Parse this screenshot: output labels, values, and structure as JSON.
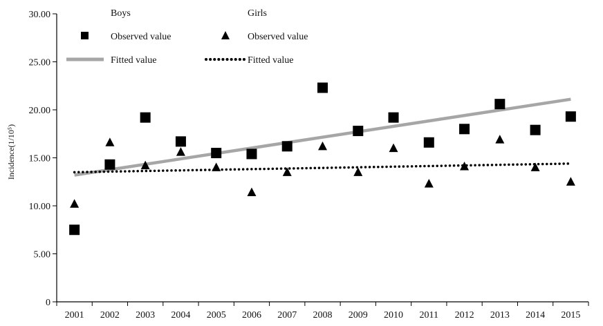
{
  "chart_data": {
    "type": "scatter",
    "ylabel": "Incidence(1/10⁵)",
    "xlabel": "",
    "ylim": [
      0,
      30
    ],
    "y_ticks": [
      "0",
      "5.00",
      "10.00",
      "15.00",
      "20.00",
      "25.00",
      "30.00"
    ],
    "y_tick_values": [
      0,
      5,
      10,
      15,
      20,
      25,
      30
    ],
    "categories": [
      "2001",
      "2002",
      "2003",
      "2004",
      "2005",
      "2006",
      "2007",
      "2008",
      "2009",
      "2010",
      "2011",
      "2012",
      "2013",
      "2014",
      "2015"
    ],
    "grid": false,
    "legend_position": "top-left",
    "legend": {
      "boys_header": "Boys",
      "girls_header": "Girls",
      "boys_observed": "Observed value",
      "girls_observed": "Observed value",
      "boys_fitted": "Fitted value",
      "girls_fitted": "Fitted value"
    },
    "series": [
      {
        "group": "Boys",
        "kind": "observed",
        "marker": "square",
        "values": [
          7.5,
          14.3,
          19.2,
          16.7,
          15.5,
          15.4,
          16.2,
          22.3,
          17.8,
          19.2,
          16.6,
          18.0,
          20.6,
          17.9,
          19.3
        ]
      },
      {
        "group": "Girls",
        "kind": "observed",
        "marker": "triangle",
        "values": [
          10.2,
          16.6,
          14.2,
          15.6,
          14.0,
          11.4,
          13.5,
          16.2,
          13.5,
          16.0,
          12.3,
          14.1,
          16.9,
          14.0,
          12.5
        ]
      },
      {
        "group": "Boys",
        "kind": "fitted",
        "line": "solid",
        "values": [
          13.2,
          13.76,
          14.33,
          14.89,
          15.46,
          16.02,
          16.59,
          17.15,
          17.71,
          18.28,
          18.84,
          19.41,
          19.97,
          20.54,
          21.1
        ]
      },
      {
        "group": "Girls",
        "kind": "fitted",
        "line": "dotted",
        "values": [
          13.5,
          13.56,
          13.63,
          13.69,
          13.76,
          13.82,
          13.89,
          13.95,
          14.01,
          14.08,
          14.14,
          14.21,
          14.27,
          14.34,
          14.4
        ]
      }
    ],
    "colors": {
      "boys_fitted": "#a6a6a6",
      "girls_fitted": "#000000",
      "markers": "#000000",
      "axis": "#000000"
    }
  }
}
